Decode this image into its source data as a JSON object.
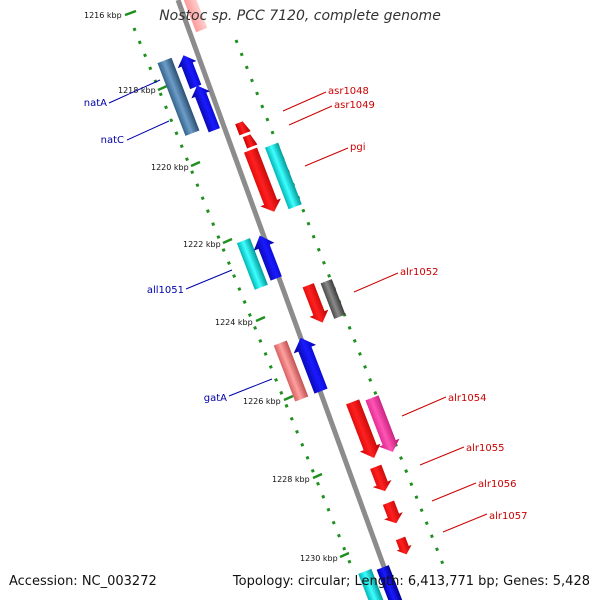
{
  "header": {
    "title": "Nostoc sp. PCC 7120, complete genome"
  },
  "footer": {
    "accession": "Accession: NC_003272",
    "summary": "Topology: circular; Length: 6,413,771 bp; Genes: 5,428"
  },
  "colors": {
    "backbone": "#8c8c8c",
    "tick": "#1f8f1f",
    "label_left": "#0000aa",
    "label_right": "#cc0000",
    "red": "#ff0000",
    "blue": "#0000ee",
    "cyan": "#00e0e0",
    "steel": "#4a7fae",
    "pink": "#ff2d9a",
    "salmon": "#f08080",
    "gray": "#6b6b6b"
  },
  "scale": [
    {
      "label": "1216 kbp",
      "kbp": 1216
    },
    {
      "label": "1218 kbp",
      "kbp": 1218
    },
    {
      "label": "1220 kbp",
      "kbp": 1220
    },
    {
      "label": "1222 kbp",
      "kbp": 1222
    },
    {
      "label": "1224 kbp",
      "kbp": 1224
    },
    {
      "label": "1226 kbp",
      "kbp": 1226
    },
    {
      "label": "1228 kbp",
      "kbp": 1228
    },
    {
      "label": "1230 kbp",
      "kbp": 1230
    }
  ],
  "genes": [
    {
      "label": "natA",
      "side": "left",
      "color": "steel",
      "shape": "block"
    },
    {
      "label": "natC",
      "side": "left",
      "color": "blue",
      "shape": "arrow"
    },
    {
      "label": "all1051",
      "side": "left",
      "color": "cyan",
      "shape": "block"
    },
    {
      "label": "gatA",
      "side": "left",
      "color": "salmon",
      "shape": "block"
    },
    {
      "label": "asr1048",
      "side": "right",
      "color": "red",
      "shape": "small"
    },
    {
      "label": "asr1049",
      "side": "right",
      "color": "red",
      "shape": "small"
    },
    {
      "label": "pgi",
      "side": "right",
      "color": "cyan",
      "shape": "block"
    },
    {
      "label": "alr1052",
      "side": "right",
      "color": "gray",
      "shape": "block"
    },
    {
      "label": "alr1054",
      "side": "right",
      "color": "pink",
      "shape": "block"
    },
    {
      "label": "alr1055",
      "side": "right",
      "color": "red",
      "shape": "small"
    },
    {
      "label": "alr1056",
      "side": "right",
      "color": "red",
      "shape": "small"
    },
    {
      "label": "alr1057",
      "side": "right",
      "color": "red",
      "shape": "small"
    }
  ]
}
